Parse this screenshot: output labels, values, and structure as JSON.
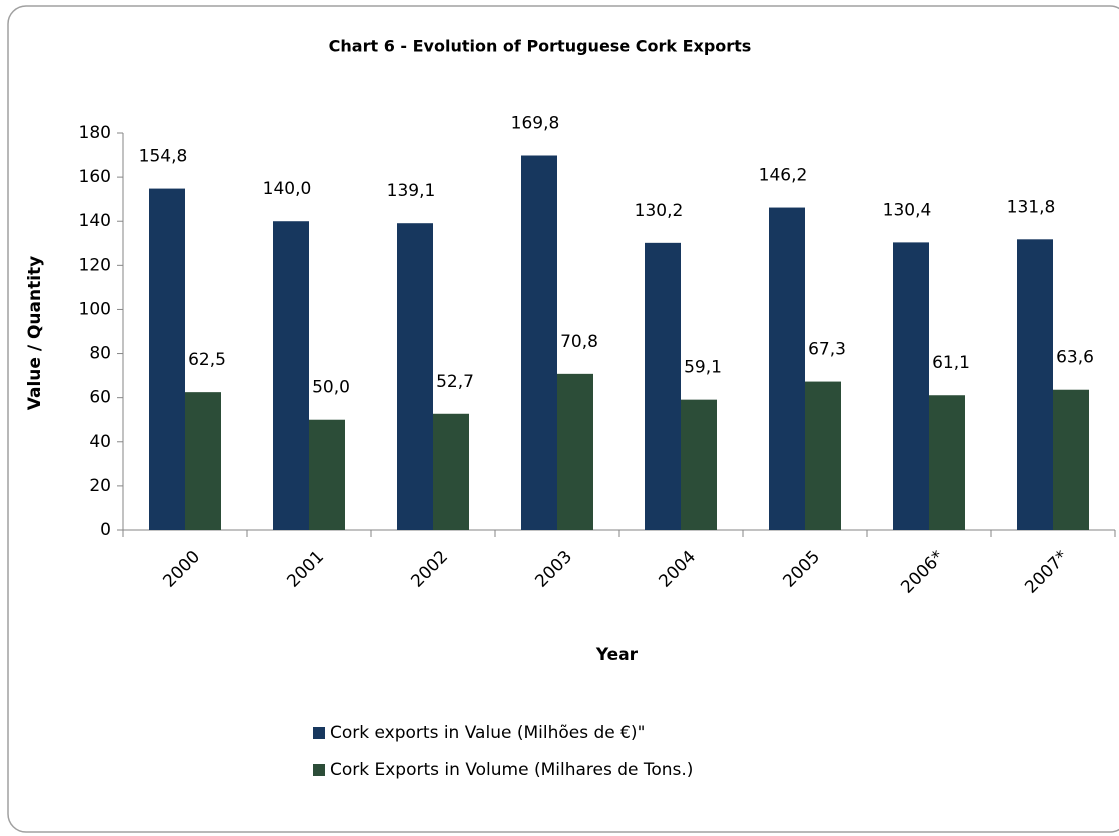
{
  "chart_data": {
    "type": "bar",
    "title": "Chart 6 - Evolution of Portuguese Cork Exports",
    "x_label": "Year",
    "y_label": "Value / Quantity",
    "categories": [
      "2000",
      "2001",
      "2002",
      "2003",
      "2004",
      "2005",
      "2006*",
      "2007*"
    ],
    "series": [
      {
        "name": "Cork exports in Value (Milhões de €)\"",
        "color": "#17375e",
        "values": [
          154.8,
          140.0,
          139.1,
          169.8,
          130.2,
          146.2,
          130.4,
          131.8
        ],
        "value_labels": [
          "154,8",
          "140,0",
          "139,1",
          "169,8",
          "130,2",
          "146,2",
          "130,4",
          "131,8"
        ]
      },
      {
        "name": "Cork Exports in Volume (Milhares de Tons.)",
        "color": "#2c4d38",
        "values": [
          62.5,
          50.0,
          52.7,
          70.8,
          59.1,
          67.3,
          61.1,
          63.6
        ],
        "value_labels": [
          "62,5",
          "50,0",
          "52,7",
          "70,8",
          "59,1",
          "67,3",
          "61,1",
          "63,6"
        ]
      }
    ],
    "ylim": [
      0,
      180
    ],
    "yticks": [
      0,
      20,
      40,
      60,
      80,
      100,
      120,
      140,
      160,
      180
    ],
    "legend": "bottom"
  }
}
